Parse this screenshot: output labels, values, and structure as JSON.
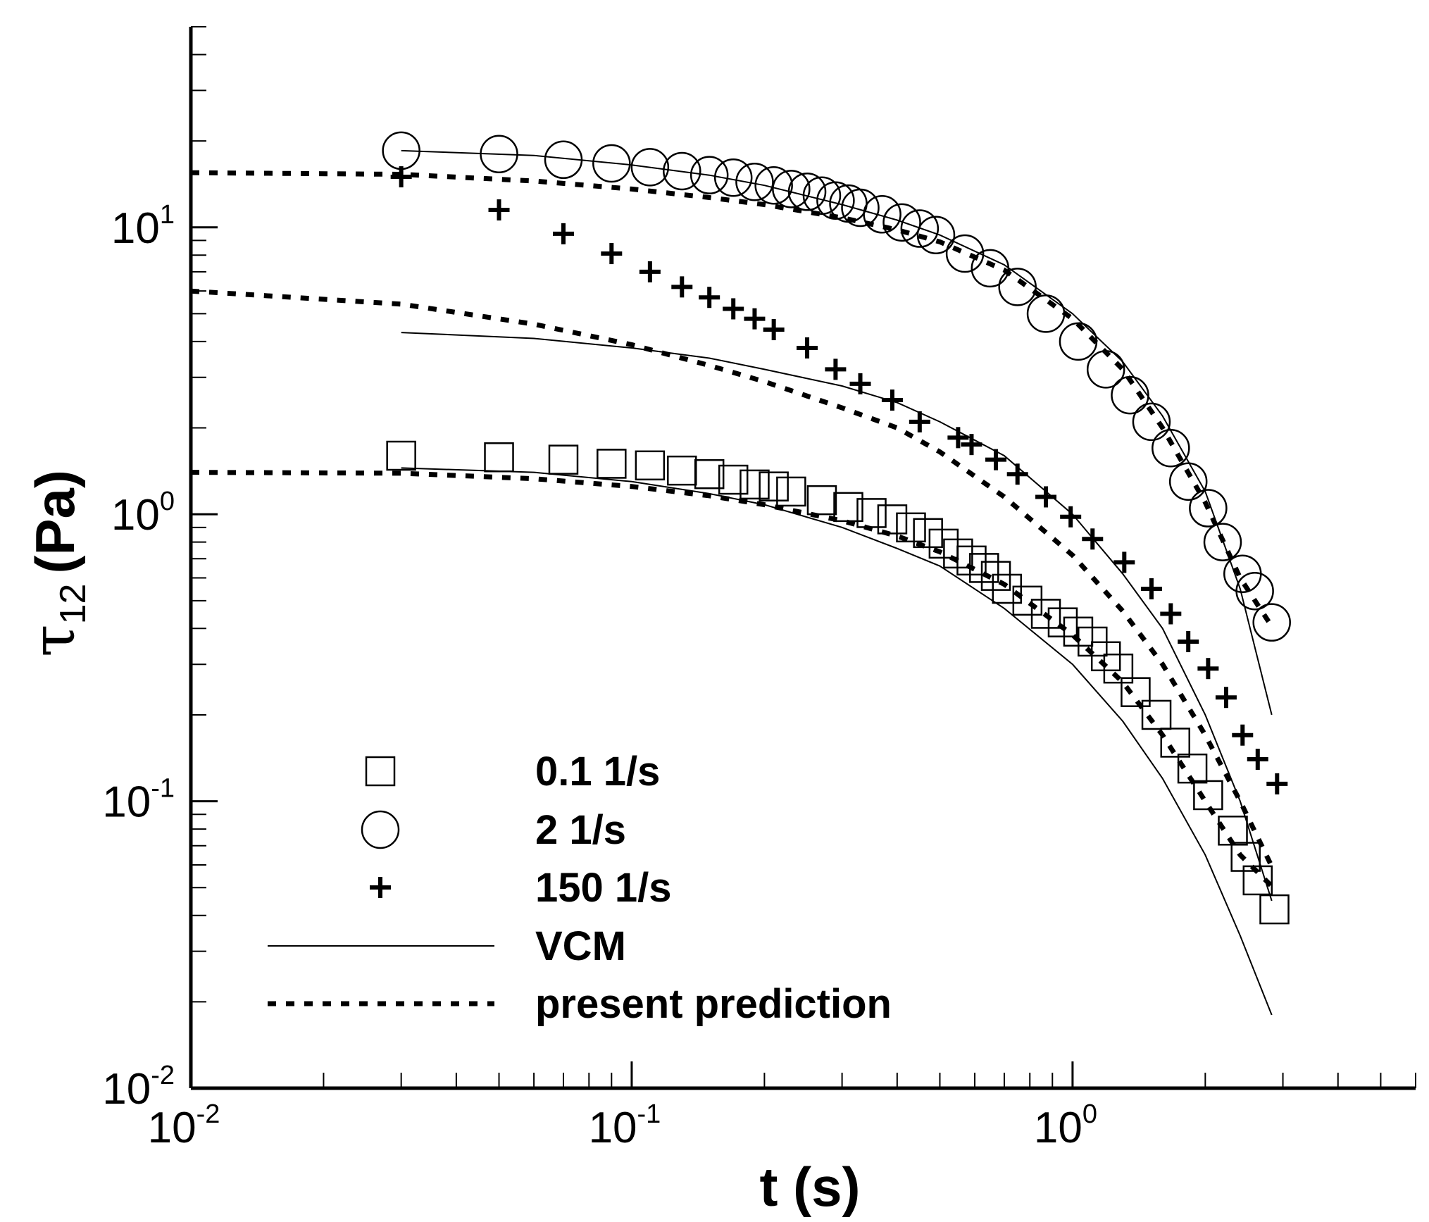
{
  "chart_data": {
    "type": "scatter",
    "title": "",
    "xlabel": "t (s)",
    "ylabel": "τ12 (Pa)",
    "ylabel_symbol": "τ",
    "ylabel_sub": "12",
    "ylabel_unit": "(Pa)",
    "xscale": "log",
    "yscale": "log",
    "xlim": [
      0.01,
      6.0
    ],
    "ylim": [
      0.01,
      50
    ],
    "x_ticks": [
      {
        "base": "10",
        "exp": "-2"
      },
      {
        "base": "10",
        "exp": "-1"
      },
      {
        "base": "10",
        "exp": "0"
      }
    ],
    "y_ticks": [
      {
        "base": "10",
        "exp": "-2"
      },
      {
        "base": "10",
        "exp": "-1"
      },
      {
        "base": "10",
        "exp": "0"
      },
      {
        "base": "10",
        "exp": "1"
      }
    ],
    "legend_position": "bottom-left",
    "series": [
      {
        "name": "0.1 1/s",
        "marker": "square",
        "x": [
          0.03,
          0.05,
          0.07,
          0.09,
          0.11,
          0.13,
          0.15,
          0.17,
          0.19,
          0.21,
          0.23,
          0.27,
          0.31,
          0.35,
          0.39,
          0.43,
          0.47,
          0.51,
          0.55,
          0.59,
          0.63,
          0.67,
          0.71,
          0.79,
          0.87,
          0.95,
          1.03,
          1.11,
          1.19,
          1.27,
          1.39,
          1.55,
          1.71,
          1.87,
          2.03,
          2.31,
          2.47,
          2.63,
          2.87
        ],
        "y": [
          1.6,
          1.58,
          1.55,
          1.5,
          1.48,
          1.42,
          1.38,
          1.32,
          1.27,
          1.25,
          1.2,
          1.12,
          1.06,
          1.01,
          0.96,
          0.9,
          0.86,
          0.79,
          0.73,
          0.69,
          0.65,
          0.61,
          0.55,
          0.5,
          0.45,
          0.42,
          0.39,
          0.36,
          0.32,
          0.29,
          0.24,
          0.2,
          0.16,
          0.13,
          0.105,
          0.079,
          0.064,
          0.053,
          0.042
        ]
      },
      {
        "name": "2 1/s",
        "marker": "circle",
        "x": [
          0.03,
          0.05,
          0.07,
          0.09,
          0.11,
          0.13,
          0.15,
          0.17,
          0.19,
          0.21,
          0.23,
          0.25,
          0.27,
          0.29,
          0.31,
          0.33,
          0.37,
          0.41,
          0.45,
          0.49,
          0.57,
          0.65,
          0.75,
          0.87,
          1.03,
          1.19,
          1.35,
          1.51,
          1.67,
          1.83,
          2.03,
          2.19,
          2.43,
          2.59,
          2.83
        ],
        "y": [
          18.5,
          18.0,
          17.2,
          16.7,
          16.2,
          15.7,
          15.2,
          14.9,
          14.4,
          14.0,
          13.6,
          13.3,
          12.9,
          12.4,
          12.1,
          11.7,
          11.1,
          10.4,
          9.9,
          9.4,
          8.1,
          7.2,
          6.2,
          5.0,
          4.0,
          3.2,
          2.6,
          2.1,
          1.7,
          1.3,
          1.05,
          0.8,
          0.62,
          0.54,
          0.42
        ]
      },
      {
        "name": "150 1/s",
        "marker": "plus",
        "x": [
          0.03,
          0.05,
          0.07,
          0.09,
          0.11,
          0.13,
          0.15,
          0.17,
          0.19,
          0.21,
          0.25,
          0.29,
          0.33,
          0.39,
          0.45,
          0.55,
          0.59,
          0.67,
          0.75,
          0.87,
          0.99,
          1.11,
          1.31,
          1.51,
          1.67,
          1.83,
          2.03,
          2.23,
          2.43,
          2.63,
          2.91
        ],
        "y": [
          15.0,
          11.5,
          9.5,
          8.1,
          7.0,
          6.2,
          5.7,
          5.2,
          4.8,
          4.4,
          3.8,
          3.2,
          2.85,
          2.5,
          2.1,
          1.85,
          1.75,
          1.55,
          1.38,
          1.15,
          0.98,
          0.82,
          0.68,
          0.55,
          0.45,
          0.36,
          0.29,
          0.23,
          0.17,
          0.14,
          0.115
        ]
      }
    ],
    "lines": [
      {
        "name": "VCM",
        "style": "solid",
        "curves": [
          {
            "x": [
              0.03,
              0.06,
              0.1,
              0.15,
              0.2,
              0.3,
              0.4,
              0.5,
              0.7,
              1.0,
              1.3,
              1.6,
              2.0,
              2.4,
              2.83
            ],
            "y": [
              18.5,
              17.8,
              16.5,
              15.2,
              14.0,
              12.0,
              10.6,
              9.4,
              7.4,
              5.0,
              3.4,
              2.2,
              1.2,
              0.55,
              0.2
            ]
          },
          {
            "x": [
              0.03,
              0.06,
              0.1,
              0.15,
              0.2,
              0.3,
              0.4,
              0.5,
              0.7,
              1.0,
              1.3,
              1.6,
              2.0,
              2.4,
              2.83
            ],
            "y": [
              4.3,
              4.1,
              3.8,
              3.5,
              3.2,
              2.8,
              2.45,
              2.1,
              1.6,
              1.0,
              0.62,
              0.4,
              0.2,
              0.1,
              0.045
            ]
          },
          {
            "x": [
              0.03,
              0.06,
              0.1,
              0.15,
              0.2,
              0.3,
              0.4,
              0.5,
              0.7,
              1.0,
              1.3,
              1.6,
              2.0,
              2.4,
              2.83
            ],
            "y": [
              1.45,
              1.4,
              1.3,
              1.18,
              1.08,
              0.9,
              0.76,
              0.66,
              0.47,
              0.3,
              0.19,
              0.12,
              0.065,
              0.034,
              0.018
            ]
          }
        ]
      },
      {
        "name": "present prediction",
        "style": "dotted",
        "curves": [
          {
            "x": [
              0.01,
              0.03,
              0.06,
              0.1,
              0.15,
              0.2,
              0.3,
              0.4,
              0.5,
              0.7,
              1.0,
              1.3,
              1.6,
              2.0,
              2.4,
              2.85
            ],
            "y": [
              15.5,
              15.3,
              14.5,
              13.6,
              12.7,
              12.0,
              10.8,
              9.8,
              8.9,
              7.1,
              4.8,
              3.2,
              2.0,
              1.1,
              0.6,
              0.4
            ]
          },
          {
            "x": [
              0.01,
              0.03,
              0.06,
              0.1,
              0.15,
              0.2,
              0.3,
              0.4,
              0.5,
              0.7,
              1.0,
              1.3,
              1.6,
              2.0,
              2.4,
              2.85
            ],
            "y": [
              6.0,
              5.4,
              4.6,
              3.9,
              3.3,
              2.9,
              2.35,
              2.0,
              1.65,
              1.15,
              0.72,
              0.46,
              0.3,
              0.17,
              0.1,
              0.058
            ]
          },
          {
            "x": [
              0.01,
              0.03,
              0.06,
              0.1,
              0.15,
              0.2,
              0.3,
              0.4,
              0.5,
              0.7,
              1.0,
              1.3,
              1.6,
              2.0,
              2.4,
              2.85
            ],
            "y": [
              1.4,
              1.39,
              1.33,
              1.25,
              1.16,
              1.08,
              0.95,
              0.84,
              0.74,
              0.57,
              0.38,
              0.26,
              0.17,
              0.1,
              0.065,
              0.05
            ]
          }
        ]
      }
    ],
    "legend": [
      {
        "label": "0.1 1/s",
        "symbol": "square"
      },
      {
        "label": "2 1/s",
        "symbol": "circle"
      },
      {
        "label": "150 1/s",
        "symbol": "plus"
      },
      {
        "label": "VCM",
        "symbol": "solid-line"
      },
      {
        "label": "present prediction",
        "symbol": "dotted-line"
      }
    ]
  }
}
